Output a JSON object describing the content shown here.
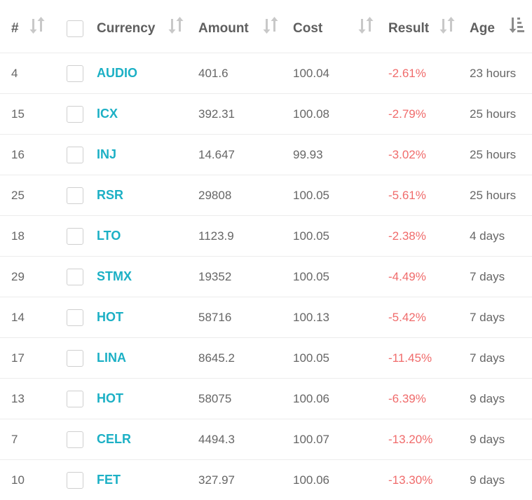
{
  "header": {
    "id": "#",
    "currency": "Currency",
    "amount": "Amount",
    "cost": "Cost",
    "result": "Result",
    "age": "Age"
  },
  "icons": {
    "sort": "sort-updown-icon",
    "sort_active": "sort-amount-down-icon"
  },
  "colors": {
    "currency": "#1cb0c5",
    "negative": "#f06b6b",
    "icon": "#c8c8c8",
    "active_icon": "#8c8c8c"
  },
  "rows": [
    {
      "id": "4",
      "currency": "AUDIO",
      "amount": "401.6",
      "cost": "100.04",
      "result": "-2.61%",
      "age": "23 hours"
    },
    {
      "id": "15",
      "currency": "ICX",
      "amount": "392.31",
      "cost": "100.08",
      "result": "-2.79%",
      "age": "25 hours"
    },
    {
      "id": "16",
      "currency": "INJ",
      "amount": "14.647",
      "cost": "99.93",
      "result": "-3.02%",
      "age": "25 hours"
    },
    {
      "id": "25",
      "currency": "RSR",
      "amount": "29808",
      "cost": "100.05",
      "result": "-5.61%",
      "age": "25 hours"
    },
    {
      "id": "18",
      "currency": "LTO",
      "amount": "1123.9",
      "cost": "100.05",
      "result": "-2.38%",
      "age": "4 days"
    },
    {
      "id": "29",
      "currency": "STMX",
      "amount": "19352",
      "cost": "100.05",
      "result": "-4.49%",
      "age": "7 days"
    },
    {
      "id": "14",
      "currency": "HOT",
      "amount": "58716",
      "cost": "100.13",
      "result": "-5.42%",
      "age": "7 days"
    },
    {
      "id": "17",
      "currency": "LINA",
      "amount": "8645.2",
      "cost": "100.05",
      "result": "-11.45%",
      "age": "7 days"
    },
    {
      "id": "13",
      "currency": "HOT",
      "amount": "58075",
      "cost": "100.06",
      "result": "-6.39%",
      "age": "9 days"
    },
    {
      "id": "7",
      "currency": "CELR",
      "amount": "4494.3",
      "cost": "100.07",
      "result": "-13.20%",
      "age": "9 days"
    },
    {
      "id": "10",
      "currency": "FET",
      "amount": "327.97",
      "cost": "100.06",
      "result": "-13.30%",
      "age": "9 days"
    }
  ]
}
